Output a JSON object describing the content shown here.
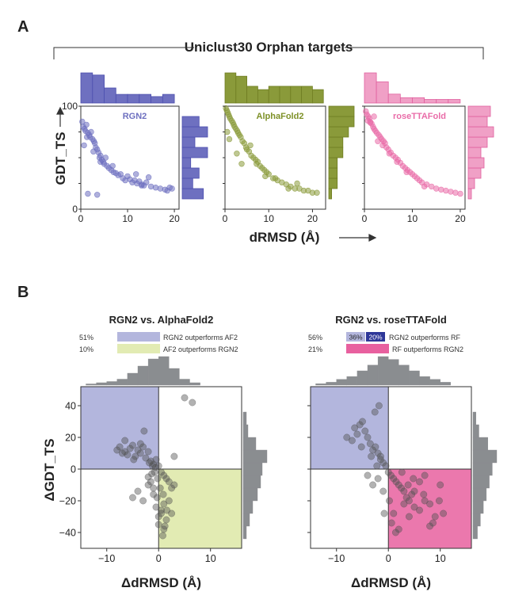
{
  "panel_a": {
    "label": "A",
    "title": "Uniclust30 Orphan targets",
    "ylabel": "GDT_TS",
    "xlabel": "dRMSD (Å)",
    "ytick_labels": [
      "0",
      "100"
    ],
    "xtick_labels": [
      "0",
      "10",
      "20"
    ]
  },
  "panel_b": {
    "label": "B",
    "ylabel": "ΔGDT_TS",
    "xlabel": "ΔdRMSD (Å)",
    "ytick_labels": [
      "−40",
      "−20",
      "0",
      "20",
      "40"
    ],
    "xtick_labels": [
      "−10",
      "0",
      "10"
    ]
  },
  "chart_data": [
    {
      "type": "scatter",
      "name": "RGN2",
      "color": "#6e70c0",
      "xlim": [
        0,
        21
      ],
      "ylim": [
        0,
        100
      ],
      "xticks": [
        0,
        10,
        20
      ],
      "x": [
        0.3,
        0.5,
        0.8,
        1,
        1.2,
        1.5,
        1.8,
        2,
        2.2,
        2.5,
        2.8,
        3,
        3.2,
        3.5,
        3.8,
        4,
        4.2,
        4.5,
        4.8,
        5,
        5.3,
        5.6,
        6,
        6.5,
        7,
        7.5,
        8,
        8.5,
        9,
        9.5,
        10,
        10.5,
        11,
        11.5,
        12,
        12.5,
        13,
        13.5,
        14,
        15,
        16,
        17,
        18,
        18.5,
        19,
        19.5,
        1.5,
        3.5,
        0.7,
        2.7,
        4.2,
        1.3,
        6.8,
        11.8,
        14.5,
        13
      ],
      "y": [
        85,
        80,
        78,
        76,
        82,
        74,
        72,
        70,
        75,
        68,
        66,
        64,
        60,
        58,
        55,
        50,
        52,
        48,
        46,
        44,
        50,
        42,
        40,
        38,
        36,
        35,
        33,
        34,
        30,
        28,
        32,
        29,
        26,
        28,
        25,
        27,
        24,
        23,
        26,
        22,
        21,
        20,
        19,
        18,
        21,
        20,
        15,
        14,
        62,
        56,
        46,
        70,
        42,
        34,
        31,
        23
      ],
      "xhist_edges": [
        0,
        2.5,
        5,
        7.5,
        10,
        12.5,
        15,
        17.5,
        20
      ],
      "xhist_counts": [
        28,
        26,
        14,
        8,
        8,
        8,
        6,
        8
      ],
      "yhist_edges": [
        10,
        20,
        30,
        40,
        50,
        60,
        70,
        80,
        90
      ],
      "yhist_counts": [
        10,
        5,
        8,
        4,
        12,
        6,
        12,
        8
      ]
    },
    {
      "type": "scatter",
      "name": "AlphaFold2",
      "color": "#8a9a3a",
      "xlim": [
        0,
        23
      ],
      "ylim": [
        0,
        100
      ],
      "xticks": [
        0,
        10,
        20
      ],
      "x": [
        0.2,
        0.4,
        0.6,
        0.8,
        1,
        1.2,
        1.5,
        1.8,
        2,
        2.2,
        2.5,
        2.8,
        3,
        3.3,
        3.6,
        4,
        4.4,
        4.8,
        5,
        5.5,
        6,
        6.5,
        7,
        7.5,
        8,
        8.5,
        9,
        9.5,
        10,
        11,
        12,
        13,
        14,
        15,
        16,
        17,
        18,
        19,
        20,
        21,
        1,
        2.7,
        3.8,
        5.8,
        7.2,
        9.2,
        11.5,
        14.5,
        16.5,
        0.5
      ],
      "y": [
        98,
        96,
        94,
        92,
        90,
        88,
        86,
        84,
        82,
        80,
        78,
        76,
        74,
        72,
        70,
        66,
        64,
        60,
        58,
        56,
        52,
        50,
        48,
        46,
        42,
        40,
        38,
        36,
        34,
        30,
        28,
        26,
        24,
        22,
        20,
        20,
        18,
        18,
        16,
        16,
        68,
        54,
        44,
        62,
        44,
        32,
        30,
        20,
        25,
        75
      ],
      "xhist_edges": [
        0,
        2.5,
        5,
        7.5,
        10,
        12.5,
        15,
        17.5,
        20,
        22.5
      ],
      "xhist_counts": [
        18,
        16,
        10,
        8,
        10,
        10,
        10,
        10,
        8
      ],
      "yhist_edges": [
        10,
        20,
        30,
        40,
        50,
        60,
        70,
        80,
        90,
        100
      ],
      "yhist_counts": [
        2,
        6,
        6,
        6,
        10,
        10,
        14,
        18,
        18
      ]
    },
    {
      "type": "scatter",
      "name": "roseTTAFold",
      "color": "#e96ca8",
      "xlim": [
        0,
        21
      ],
      "ylim": [
        0,
        100
      ],
      "xticks": [
        0,
        10,
        20
      ],
      "x": [
        0.3,
        0.5,
        0.8,
        1,
        1.2,
        1.5,
        1.8,
        2,
        2.3,
        2.6,
        3,
        3.3,
        3.6,
        4,
        4.3,
        4.6,
        5,
        5.5,
        6,
        6.5,
        7,
        7.5,
        8,
        8.5,
        9,
        9.5,
        10,
        10.5,
        11,
        11.5,
        12,
        13,
        14,
        15,
        16,
        17,
        18,
        19,
        20,
        1.2,
        2.8,
        3.8,
        5.2,
        6.8,
        8.8,
        12.5,
        0.7,
        2
      ],
      "y": [
        95,
        92,
        90,
        88,
        85,
        83,
        80,
        78,
        76,
        74,
        72,
        70,
        68,
        66,
        64,
        60,
        58,
        55,
        52,
        50,
        48,
        45,
        42,
        40,
        38,
        36,
        34,
        32,
        30,
        28,
        26,
        24,
        22,
        20,
        19,
        18,
        17,
        16,
        15,
        84,
        66,
        62,
        54,
        46,
        36,
        22,
        86,
        90
      ],
      "xhist_edges": [
        0,
        2.5,
        5,
        7.5,
        10,
        12.5,
        15,
        17.5,
        20
      ],
      "xhist_counts": [
        34,
        24,
        10,
        6,
        6,
        4,
        4,
        4
      ],
      "yhist_edges": [
        10,
        20,
        30,
        40,
        50,
        60,
        70,
        80,
        90,
        100
      ],
      "yhist_counts": [
        2,
        4,
        8,
        10,
        8,
        12,
        16,
        12,
        14
      ]
    },
    {
      "type": "scatter",
      "title": "RGN2 vs. AlphaFold2",
      "xlim": [
        -15,
        16
      ],
      "ylim": [
        -50,
        52
      ],
      "xticks": [
        -10,
        0,
        10
      ],
      "yticks": [
        -40,
        -20,
        0,
        20,
        40
      ],
      "legend": [
        {
          "pct": "51%",
          "label": "RGN2 outperforms AF2",
          "color": "#b3b6dd"
        },
        {
          "pct": "10%",
          "label": "AF2 outperforms RGN2",
          "color": "#e2ebb3"
        }
      ],
      "regions": [
        {
          "x0": -15,
          "x1": 0,
          "y0": 0,
          "y1": 52,
          "color": "#b3b6dd"
        },
        {
          "x0": 0,
          "x1": 16,
          "y0": -50,
          "y1": 0,
          "color": "#e2ebb3"
        }
      ],
      "x": [
        -8,
        -7,
        -6.5,
        -6,
        -5.5,
        -5,
        -4.5,
        -4,
        -3.5,
        -3,
        -2.5,
        -2,
        -1.5,
        -1,
        -0.5,
        0,
        0.5,
        1,
        1.5,
        2,
        2.5,
        3,
        -5,
        -4,
        -3,
        -2,
        -1,
        -0.5,
        0,
        0.5,
        1,
        -1,
        -1.5,
        -2,
        0,
        0.5,
        1,
        1.5,
        2,
        0.8,
        1.2,
        -0.8,
        -1.2,
        -0.3,
        5,
        6.5,
        3,
        -6.5,
        -3.5,
        -2.8,
        -1.8,
        2.5,
        -4.8,
        -7.5,
        0.3,
        -0.2,
        0.9,
        1.6,
        -0.6,
        -1.3
      ],
      "y": [
        12,
        10,
        11,
        9,
        13,
        15,
        8,
        12,
        10,
        14,
        7,
        11,
        5,
        3,
        6,
        2,
        -2,
        -4,
        -6,
        -8,
        -12,
        -10,
        -18,
        -14,
        -20,
        -10,
        -16,
        -24,
        -30,
        -26,
        -22,
        -12,
        -8,
        -5,
        -35,
        -28,
        -38,
        -32,
        -20,
        -42,
        -36,
        -2,
        2,
        -18,
        45,
        42,
        8,
        18,
        16,
        24,
        4,
        -28,
        6,
        14,
        -12,
        -6,
        -16,
        -26,
        1,
        -3
      ],
      "xhist_edges": [
        -14,
        -12,
        -10,
        -8,
        -6,
        -4,
        -2,
        0,
        2,
        4,
        6,
        8
      ],
      "xhist_counts": [
        1,
        2,
        3,
        5,
        10,
        16,
        22,
        24,
        14,
        5,
        2
      ],
      "yhist_edges": [
        -44,
        -36,
        -28,
        -20,
        -12,
        -4,
        4,
        12,
        20,
        28,
        36
      ],
      "yhist_counts": [
        4,
        8,
        12,
        18,
        22,
        24,
        30,
        16,
        6,
        4
      ]
    },
    {
      "type": "scatter",
      "title": "RGN2 vs. roseTTAFold",
      "xlim": [
        -15,
        16
      ],
      "ylim": [
        -50,
        52
      ],
      "xticks": [
        -10,
        0,
        10
      ],
      "yticks": [
        -40,
        -20,
        0,
        20,
        40
      ],
      "legend": [
        {
          "pct": "56%",
          "label": "RGN2 outperforms RF",
          "segments": [
            {
              "text": "36%",
              "color": "#b3b6dd"
            },
            {
              "text": "20%",
              "color": "#2e3798"
            }
          ]
        },
        {
          "pct": "21%",
          "label": "RF outperforms RGN2",
          "color": "#e8609f"
        }
      ],
      "regions": [
        {
          "x0": -15,
          "x1": 0,
          "y0": 0,
          "y1": 52,
          "color": "#b3b6dd"
        },
        {
          "x0": 0,
          "x1": 16,
          "y0": -50,
          "y1": 0,
          "color": "#e8609f"
        }
      ],
      "x": [
        -8,
        -7,
        -6,
        -5.5,
        -5,
        -4.5,
        -4,
        -3.5,
        -3,
        -2.5,
        -2,
        -1.5,
        -1,
        -0.5,
        0,
        0.5,
        1,
        1.5,
        2,
        2.5,
        3,
        3.5,
        4,
        4.5,
        5,
        6,
        7,
        8,
        9,
        10,
        1,
        2,
        3,
        4,
        5,
        6,
        7,
        8,
        -2,
        -3,
        -4,
        -1,
        0.2,
        -0.8,
        -1.5,
        -2.2,
        -3.3,
        -5.2,
        -6.5,
        -2.6,
        0.6,
        1.4,
        2.6,
        3.8,
        4.8,
        6.8,
        8.6,
        9.8,
        10.6,
        -1.8
      ],
      "y": [
        20,
        18,
        22,
        28,
        30,
        24,
        20,
        16,
        12,
        14,
        10,
        8,
        4,
        2,
        -2,
        -4,
        -6,
        -8,
        -10,
        -12,
        -14,
        -18,
        -20,
        -16,
        -24,
        -26,
        -20,
        -36,
        -30,
        -10,
        -28,
        -38,
        -22,
        -30,
        -14,
        -8,
        -4,
        -22,
        -6,
        -10,
        -4,
        -14,
        -20,
        -28,
        6,
        2,
        8,
        14,
        26,
        36,
        -34,
        -40,
        -2,
        -10,
        -6,
        -16,
        -34,
        -20,
        -28,
        40
      ],
      "xhist_edges": [
        -14,
        -12,
        -10,
        -8,
        -6,
        -4,
        -2,
        0,
        2,
        4,
        6,
        8,
        10,
        12
      ],
      "xhist_counts": [
        1,
        2,
        4,
        6,
        10,
        14,
        20,
        18,
        14,
        10,
        6,
        4,
        2
      ],
      "yhist_edges": [
        -44,
        -36,
        -28,
        -20,
        -12,
        -4,
        4,
        12,
        20,
        28,
        36
      ],
      "yhist_counts": [
        6,
        10,
        14,
        18,
        22,
        26,
        32,
        20,
        8,
        4
      ]
    }
  ]
}
